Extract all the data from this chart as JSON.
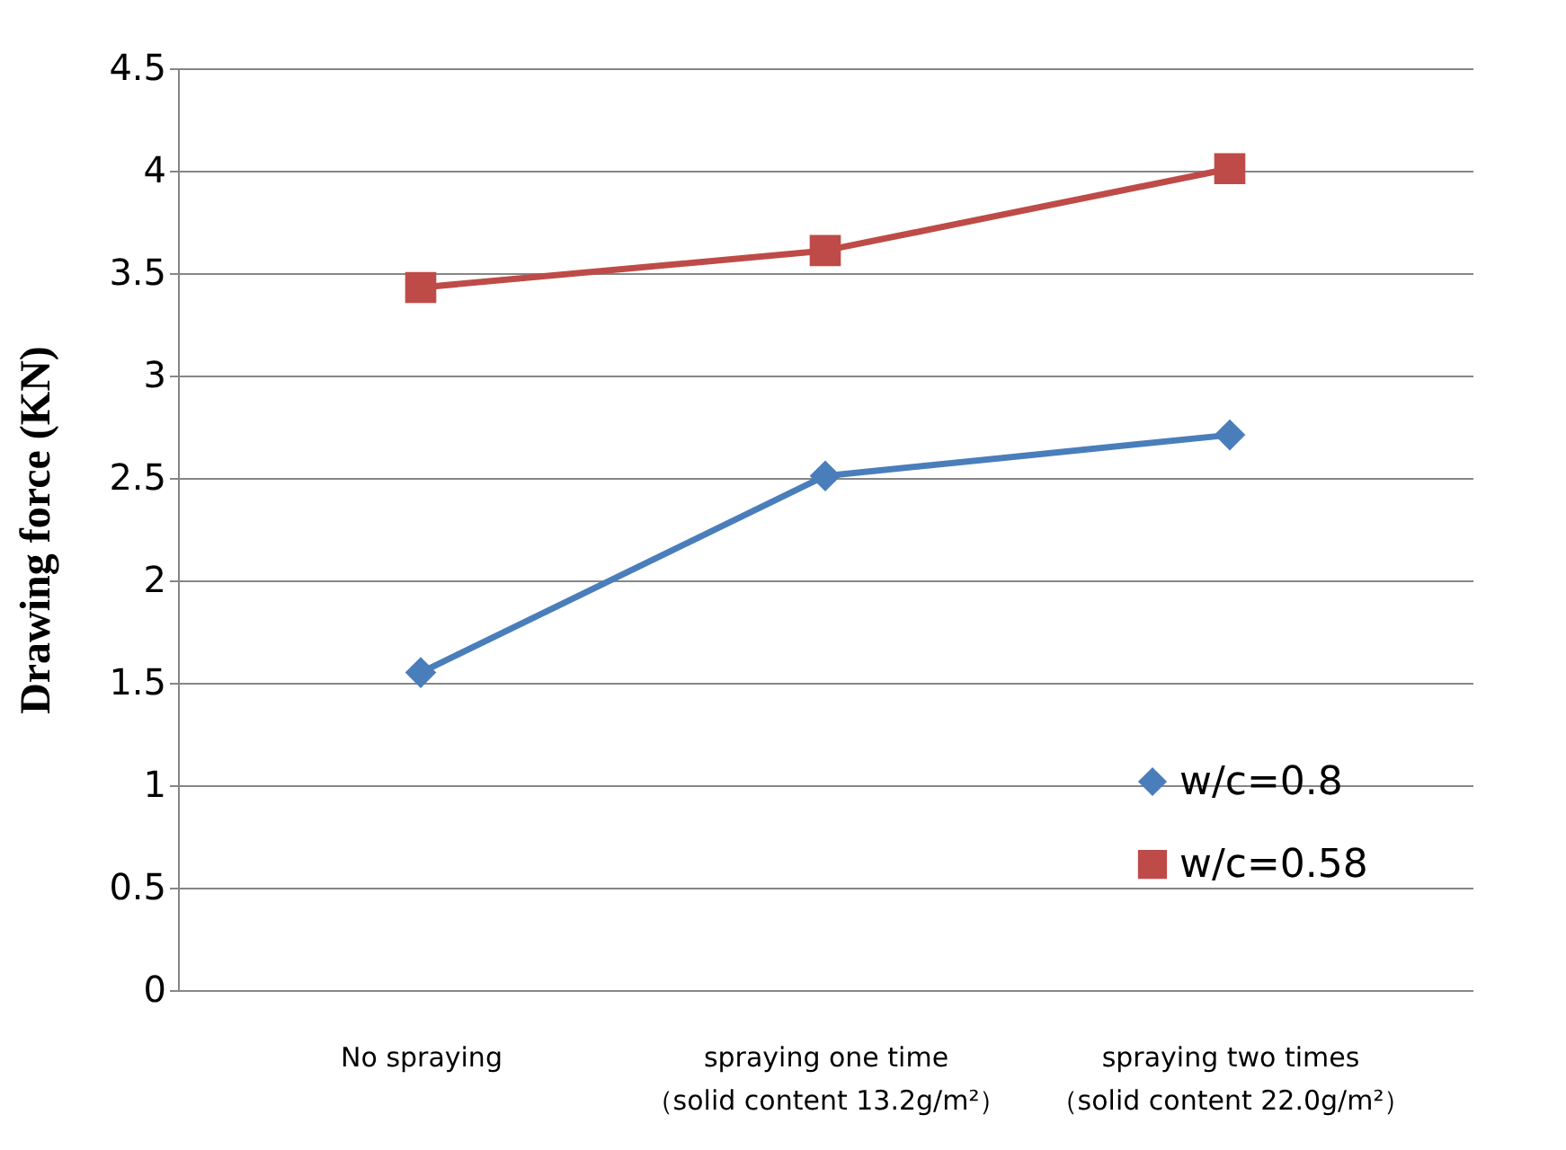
{
  "chart_data": {
    "type": "line",
    "ylabel": "Drawing force (KN)",
    "categories": [
      "No spraying",
      "spraying one time\n（solid content 13.2g/m²）",
      "spraying two times\n（solid content 22.0g/m²）"
    ],
    "series": [
      {
        "name": "w/c=0.8",
        "color": "#4a7ebb",
        "marker": "diamond",
        "values": [
          1.55,
          2.51,
          2.71
        ]
      },
      {
        "name": "w/c=0.58",
        "color": "#be4b48",
        "marker": "square",
        "values": [
          3.43,
          3.61,
          4.01
        ]
      }
    ],
    "ylim": [
      0,
      4.5
    ],
    "yticks": [
      0,
      0.5,
      1,
      1.5,
      2,
      2.5,
      3,
      3.5,
      4,
      4.5
    ],
    "grid": "y",
    "legend": "bottom right",
    "line_style": "solid"
  }
}
